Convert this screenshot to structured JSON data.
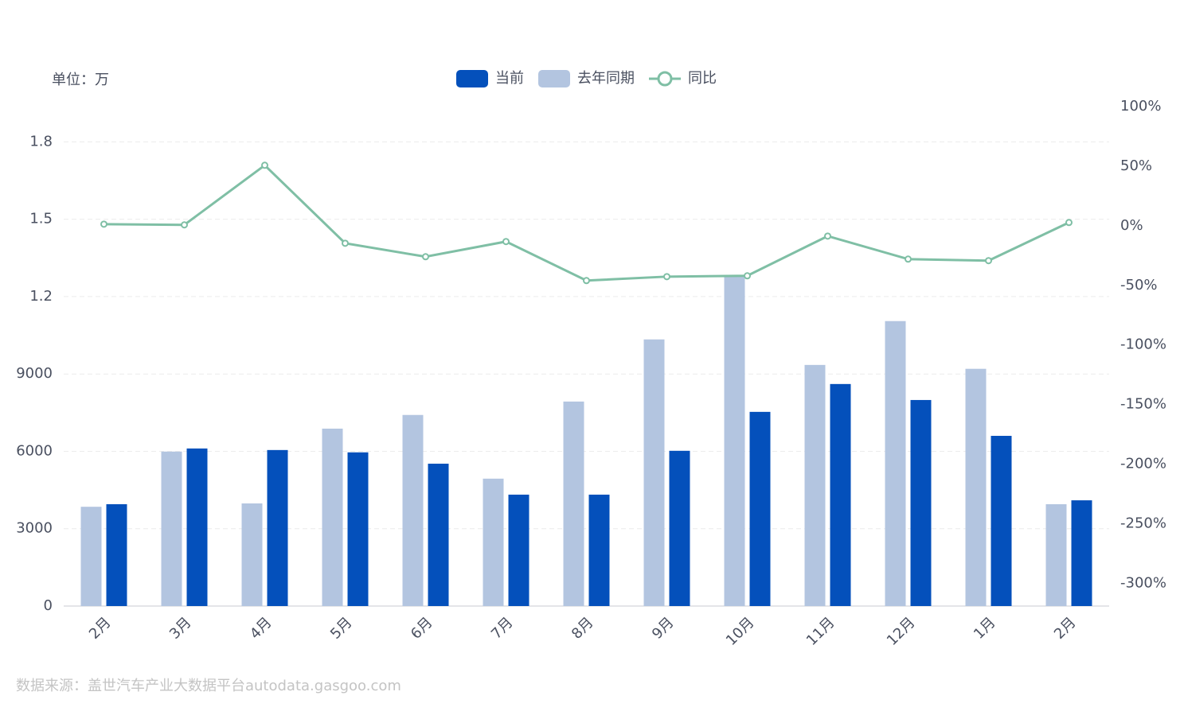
{
  "chart_data": {
    "type": "bar-line",
    "unit_label": "单位：万",
    "source": "数据来源：盖世汽车产业大数据平台autodata.gasgoo.com",
    "categories": [
      "2月",
      "3月",
      "4月",
      "5月",
      "6月",
      "7月",
      "8月",
      "9月",
      "10月",
      "11月",
      "12月",
      "1月",
      "2月"
    ],
    "series": [
      {
        "name": "当前",
        "type": "bar",
        "color": "#0450bb",
        "values": [
          3950,
          6110,
          6050,
          5960,
          5520,
          4320,
          4320,
          6020,
          7530,
          8610,
          7990,
          6600,
          4100
        ]
      },
      {
        "name": "去年同期",
        "type": "bar",
        "color": "#b3c5e0",
        "values": [
          3850,
          5990,
          3980,
          6880,
          7410,
          4940,
          7930,
          10340,
          12840,
          9350,
          11050,
          9200,
          3950
        ]
      },
      {
        "name": "同比",
        "type": "line",
        "axis": "y2",
        "color": "#7fbfa5",
        "values": [
          1.3,
          0.7,
          50.7,
          -14.7,
          -26,
          -13.3,
          -46,
          -42.7,
          -42,
          -8.7,
          -28,
          -29.3,
          2.7
        ]
      }
    ],
    "ylim": [
      0,
      19400
    ],
    "yticks": [
      0,
      3000,
      6000,
      9000,
      {
        "value": 12000,
        "label": "1.2"
      },
      {
        "value": 15000,
        "label": "1.5"
      },
      {
        "value": 18000,
        "label": "1.8"
      }
    ],
    "y2lim": [
      -319,
      100.6
    ],
    "y2ticks": [
      {
        "value": 100,
        "label": "100%"
      },
      {
        "value": 50,
        "label": "50%"
      },
      {
        "value": 0,
        "label": "0%"
      },
      {
        "value": -50,
        "label": "-50%"
      },
      {
        "value": -100,
        "label": "-100%"
      },
      {
        "value": -150,
        "label": "-150%"
      },
      {
        "value": -200,
        "label": "-200%"
      },
      {
        "value": -250,
        "label": "-250%"
      },
      {
        "value": -300,
        "label": "-300%"
      }
    ],
    "grid": true
  }
}
